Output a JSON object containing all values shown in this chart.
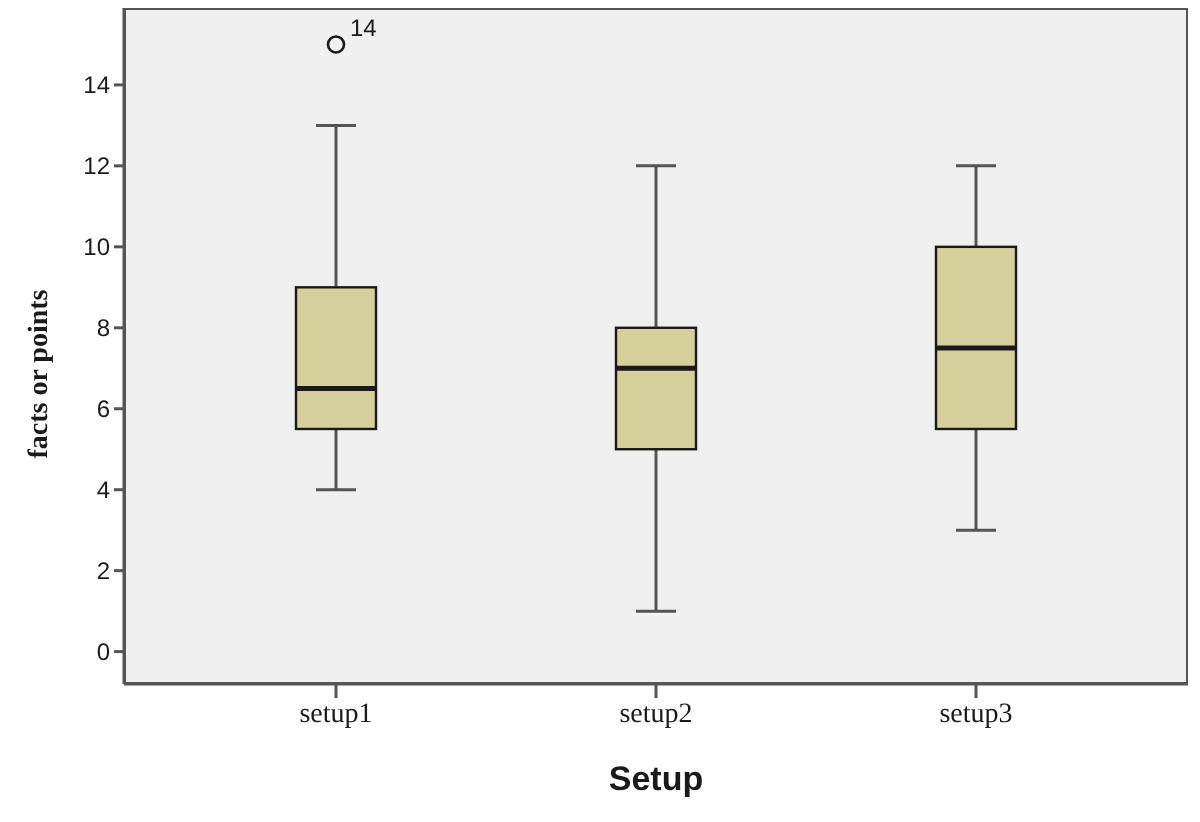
{
  "chart_data": {
    "type": "box",
    "xlabel": "Setup",
    "ylabel": "facts or points",
    "categories": [
      "setup1",
      "setup2",
      "setup3"
    ],
    "boxes": [
      {
        "low": 4,
        "q1": 5.5,
        "median": 6.5,
        "q3": 9,
        "high": 13,
        "outliers": [
          15
        ]
      },
      {
        "low": 1,
        "q1": 5,
        "median": 7,
        "q3": 8,
        "high": 12
      },
      {
        "low": 3,
        "q1": 5.5,
        "median": 7.5,
        "q3": 10,
        "high": 12
      }
    ],
    "color": "#d4cf9b",
    "ylim": [
      -0.8,
      15.9
    ],
    "yticks": [
      0,
      2,
      4,
      6,
      8,
      10,
      12,
      14
    ],
    "grid": false,
    "annotations": [
      "14"
    ]
  }
}
